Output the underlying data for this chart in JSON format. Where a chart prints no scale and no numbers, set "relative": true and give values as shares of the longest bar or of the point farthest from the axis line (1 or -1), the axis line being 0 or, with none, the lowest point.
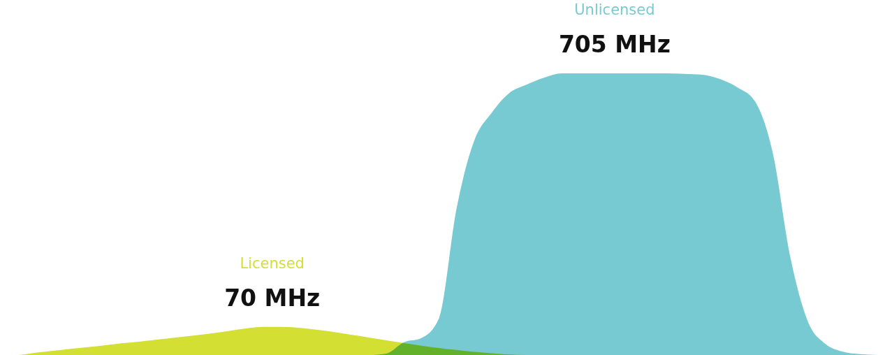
{
  "chart_data": {
    "type": "area",
    "relative": true,
    "categories": [
      null,
      null,
      null,
      null,
      null,
      null,
      null,
      null,
      null,
      null,
      null,
      null,
      null,
      null,
      null,
      null,
      null,
      null,
      null,
      null,
      null,
      null,
      null,
      null,
      null,
      null,
      null,
      null,
      null,
      null,
      null,
      null,
      null,
      null,
      null,
      null,
      null,
      null,
      null,
      null,
      null,
      null,
      null,
      null,
      null,
      null,
      null,
      null,
      null,
      null,
      null
    ],
    "series": [
      {
        "name": "Licensed",
        "color": "#d3df33",
        "values": [
          0,
          0,
          0.008,
          0.015,
          0.022,
          0.028,
          0.035,
          0.042,
          0.048,
          0.055,
          0.062,
          0.069,
          0.076,
          0.085,
          0.094,
          0.1,
          0.1,
          0.097,
          0.09,
          0.082,
          0.072,
          0.062,
          0.052,
          0.042,
          0.033,
          0.025,
          0.018,
          0.011,
          0.006,
          0.002,
          0,
          0,
          0,
          0,
          0,
          0,
          0,
          0,
          0,
          0,
          0,
          0,
          0,
          0,
          0,
          0,
          0,
          0,
          0,
          0,
          0
        ]
      },
      {
        "name": "Unlicensed",
        "color": "#78cad2",
        "values": [
          0,
          0,
          0,
          0,
          0,
          0,
          0,
          0,
          0,
          0,
          0,
          0,
          0,
          0,
          0,
          0,
          0,
          0,
          0,
          0,
          0,
          0,
          0.005,
          0.045,
          0.06,
          0.13,
          0.52,
          0.76,
          0.86,
          0.93,
          0.96,
          0.985,
          1,
          1,
          1,
          1,
          1,
          1,
          1,
          0.998,
          0.995,
          0.98,
          0.95,
          0.9,
          0.72,
          0.35,
          0.12,
          0.04,
          0.012,
          0.003,
          0
        ]
      }
    ],
    "annotations": [
      "70 MHz",
      "705 MHz"
    ]
  }
}
